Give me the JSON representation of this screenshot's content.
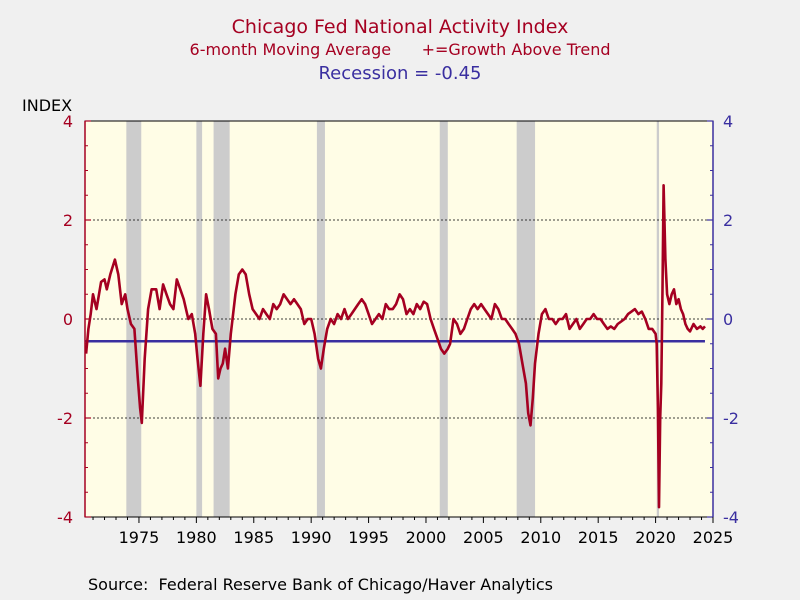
{
  "chart_data": {
    "type": "line",
    "title": "Chicago Fed National Activity Index",
    "subtitle": "6-month Moving Average      +=Growth Above Trend",
    "recession_label": "Recession = -0.45",
    "ylabel": "INDEX",
    "source": "Source:  Federal Reserve Bank of Chicago/Haver Analytics",
    "xlim": [
      1970.3,
      2025
    ],
    "ylim": [
      -4,
      4
    ],
    "x_ticks": [
      1975,
      1980,
      1985,
      1990,
      1995,
      2000,
      2005,
      2010,
      2015,
      2020,
      2025
    ],
    "y_ticks_left": [
      4,
      2,
      0,
      -2,
      -4
    ],
    "y_ticks_right": [
      4,
      2,
      0,
      -2,
      -4
    ],
    "grid": "horizontal dotted",
    "colors": {
      "plot_background": "#fffde6",
      "series_line": "#a50021",
      "threshold_line": "#3a2fa0",
      "recession_shading": "#cccccc",
      "left_axis": "#a50021",
      "right_axis": "#3a2fa0"
    },
    "recessions": [
      [
        1973.9,
        1975.2
      ],
      [
        1980.0,
        1980.5
      ],
      [
        1981.5,
        1982.9
      ],
      [
        1990.5,
        1991.2
      ],
      [
        2001.2,
        2001.9
      ],
      [
        2007.9,
        2009.5
      ],
      [
        2020.1,
        2020.3
      ]
    ],
    "threshold": {
      "name": "Recession",
      "value": -0.45
    },
    "series": [
      {
        "name": "CFNAI 6-month Moving Average",
        "points": [
          [
            1970.4,
            -0.7
          ],
          [
            1970.6,
            -0.2
          ],
          [
            1970.8,
            0.1
          ],
          [
            1971.0,
            0.5
          ],
          [
            1971.3,
            0.2
          ],
          [
            1971.7,
            0.75
          ],
          [
            1972.0,
            0.8
          ],
          [
            1972.2,
            0.6
          ],
          [
            1972.5,
            0.9
          ],
          [
            1972.9,
            1.2
          ],
          [
            1973.2,
            0.9
          ],
          [
            1973.5,
            0.3
          ],
          [
            1973.8,
            0.5
          ],
          [
            1974.0,
            0.2
          ],
          [
            1974.3,
            -0.1
          ],
          [
            1974.6,
            -0.2
          ],
          [
            1974.9,
            -1.2
          ],
          [
            1975.1,
            -1.8
          ],
          [
            1975.25,
            -2.1
          ],
          [
            1975.5,
            -0.8
          ],
          [
            1975.8,
            0.2
          ],
          [
            1976.1,
            0.6
          ],
          [
            1976.5,
            0.6
          ],
          [
            1976.8,
            0.2
          ],
          [
            1977.1,
            0.7
          ],
          [
            1977.4,
            0.5
          ],
          [
            1977.7,
            0.3
          ],
          [
            1978.0,
            0.2
          ],
          [
            1978.3,
            0.8
          ],
          [
            1978.6,
            0.6
          ],
          [
            1978.9,
            0.4
          ],
          [
            1979.3,
            0.0
          ],
          [
            1979.6,
            0.1
          ],
          [
            1979.9,
            -0.3
          ],
          [
            1980.1,
            -0.8
          ],
          [
            1980.35,
            -1.35
          ],
          [
            1980.6,
            -0.3
          ],
          [
            1980.85,
            0.5
          ],
          [
            1981.1,
            0.2
          ],
          [
            1981.4,
            -0.2
          ],
          [
            1981.7,
            -0.3
          ],
          [
            1981.9,
            -1.2
          ],
          [
            1982.1,
            -1.0
          ],
          [
            1982.3,
            -0.9
          ],
          [
            1982.5,
            -0.6
          ],
          [
            1982.75,
            -1.0
          ],
          [
            1983.0,
            -0.3
          ],
          [
            1983.4,
            0.5
          ],
          [
            1983.7,
            0.9
          ],
          [
            1984.0,
            1.0
          ],
          [
            1984.3,
            0.9
          ],
          [
            1984.6,
            0.5
          ],
          [
            1984.9,
            0.2
          ],
          [
            1985.2,
            0.1
          ],
          [
            1985.5,
            0.0
          ],
          [
            1985.8,
            0.2
          ],
          [
            1986.1,
            0.1
          ],
          [
            1986.4,
            0.0
          ],
          [
            1986.7,
            0.3
          ],
          [
            1987.0,
            0.2
          ],
          [
            1987.3,
            0.3
          ],
          [
            1987.6,
            0.5
          ],
          [
            1987.9,
            0.4
          ],
          [
            1988.2,
            0.3
          ],
          [
            1988.5,
            0.4
          ],
          [
            1988.8,
            0.3
          ],
          [
            1989.1,
            0.2
          ],
          [
            1989.4,
            -0.1
          ],
          [
            1989.7,
            0.0
          ],
          [
            1990.0,
            0.0
          ],
          [
            1990.3,
            -0.3
          ],
          [
            1990.6,
            -0.8
          ],
          [
            1990.85,
            -1.0
          ],
          [
            1991.1,
            -0.6
          ],
          [
            1991.4,
            -0.2
          ],
          [
            1991.7,
            0.0
          ],
          [
            1992.0,
            -0.1
          ],
          [
            1992.3,
            0.1
          ],
          [
            1992.6,
            0.0
          ],
          [
            1992.9,
            0.2
          ],
          [
            1993.2,
            0.0
          ],
          [
            1993.5,
            0.1
          ],
          [
            1993.8,
            0.2
          ],
          [
            1994.1,
            0.3
          ],
          [
            1994.4,
            0.4
          ],
          [
            1994.7,
            0.3
          ],
          [
            1995.0,
            0.1
          ],
          [
            1995.3,
            -0.1
          ],
          [
            1995.6,
            0.0
          ],
          [
            1995.9,
            0.1
          ],
          [
            1996.2,
            0.0
          ],
          [
            1996.5,
            0.3
          ],
          [
            1996.8,
            0.2
          ],
          [
            1997.1,
            0.2
          ],
          [
            1997.4,
            0.3
          ],
          [
            1997.7,
            0.5
          ],
          [
            1998.0,
            0.4
          ],
          [
            1998.3,
            0.1
          ],
          [
            1998.6,
            0.2
          ],
          [
            1998.9,
            0.1
          ],
          [
            1999.2,
            0.3
          ],
          [
            1999.5,
            0.2
          ],
          [
            1999.8,
            0.35
          ],
          [
            2000.1,
            0.3
          ],
          [
            2000.4,
            0.0
          ],
          [
            2000.7,
            -0.2
          ],
          [
            2001.0,
            -0.4
          ],
          [
            2001.3,
            -0.6
          ],
          [
            2001.6,
            -0.7
          ],
          [
            2001.9,
            -0.6
          ],
          [
            2002.1,
            -0.5
          ],
          [
            2002.4,
            0.0
          ],
          [
            2002.7,
            -0.1
          ],
          [
            2003.0,
            -0.3
          ],
          [
            2003.3,
            -0.2
          ],
          [
            2003.6,
            0.0
          ],
          [
            2003.9,
            0.2
          ],
          [
            2004.2,
            0.3
          ],
          [
            2004.5,
            0.2
          ],
          [
            2004.8,
            0.3
          ],
          [
            2005.1,
            0.2
          ],
          [
            2005.4,
            0.1
          ],
          [
            2005.7,
            0.0
          ],
          [
            2006.0,
            0.3
          ],
          [
            2006.3,
            0.2
          ],
          [
            2006.6,
            0.0
          ],
          [
            2006.9,
            0.0
          ],
          [
            2007.2,
            -0.1
          ],
          [
            2007.5,
            -0.2
          ],
          [
            2007.8,
            -0.3
          ],
          [
            2008.1,
            -0.5
          ],
          [
            2008.4,
            -0.9
          ],
          [
            2008.7,
            -1.3
          ],
          [
            2008.9,
            -1.9
          ],
          [
            2009.1,
            -2.15
          ],
          [
            2009.3,
            -1.6
          ],
          [
            2009.5,
            -0.9
          ],
          [
            2009.8,
            -0.3
          ],
          [
            2010.1,
            0.1
          ],
          [
            2010.4,
            0.2
          ],
          [
            2010.7,
            0.0
          ],
          [
            2011.0,
            0.0
          ],
          [
            2011.3,
            -0.1
          ],
          [
            2011.6,
            0.0
          ],
          [
            2011.9,
            0.0
          ],
          [
            2012.2,
            0.1
          ],
          [
            2012.5,
            -0.2
          ],
          [
            2012.8,
            -0.1
          ],
          [
            2013.1,
            0.0
          ],
          [
            2013.4,
            -0.2
          ],
          [
            2013.7,
            -0.1
          ],
          [
            2014.0,
            0.0
          ],
          [
            2014.3,
            0.0
          ],
          [
            2014.6,
            0.1
          ],
          [
            2014.9,
            0.0
          ],
          [
            2015.2,
            0.0
          ],
          [
            2015.5,
            -0.1
          ],
          [
            2015.8,
            -0.2
          ],
          [
            2016.1,
            -0.15
          ],
          [
            2016.4,
            -0.2
          ],
          [
            2016.7,
            -0.1
          ],
          [
            2017.0,
            -0.05
          ],
          [
            2017.3,
            0.0
          ],
          [
            2017.6,
            0.1
          ],
          [
            2017.9,
            0.15
          ],
          [
            2018.2,
            0.2
          ],
          [
            2018.5,
            0.1
          ],
          [
            2018.8,
            0.15
          ],
          [
            2019.1,
            0.0
          ],
          [
            2019.4,
            -0.2
          ],
          [
            2019.7,
            -0.2
          ],
          [
            2020.0,
            -0.3
          ],
          [
            2020.1,
            -0.5
          ],
          [
            2020.2,
            -1.8
          ],
          [
            2020.3,
            -3.8
          ],
          [
            2020.4,
            -2.0
          ],
          [
            2020.5,
            -1.3
          ],
          [
            2020.6,
            0.6
          ],
          [
            2020.7,
            2.7
          ],
          [
            2020.85,
            1.2
          ],
          [
            2021.0,
            0.5
          ],
          [
            2021.2,
            0.3
          ],
          [
            2021.4,
            0.5
          ],
          [
            2021.6,
            0.6
          ],
          [
            2021.8,
            0.3
          ],
          [
            2022.0,
            0.4
          ],
          [
            2022.2,
            0.2
          ],
          [
            2022.4,
            0.1
          ],
          [
            2022.6,
            -0.1
          ],
          [
            2022.8,
            -0.2
          ],
          [
            2023.0,
            -0.25
          ],
          [
            2023.3,
            -0.1
          ],
          [
            2023.6,
            -0.2
          ],
          [
            2023.9,
            -0.15
          ],
          [
            2024.1,
            -0.2
          ],
          [
            2024.3,
            -0.15
          ]
        ]
      }
    ]
  }
}
